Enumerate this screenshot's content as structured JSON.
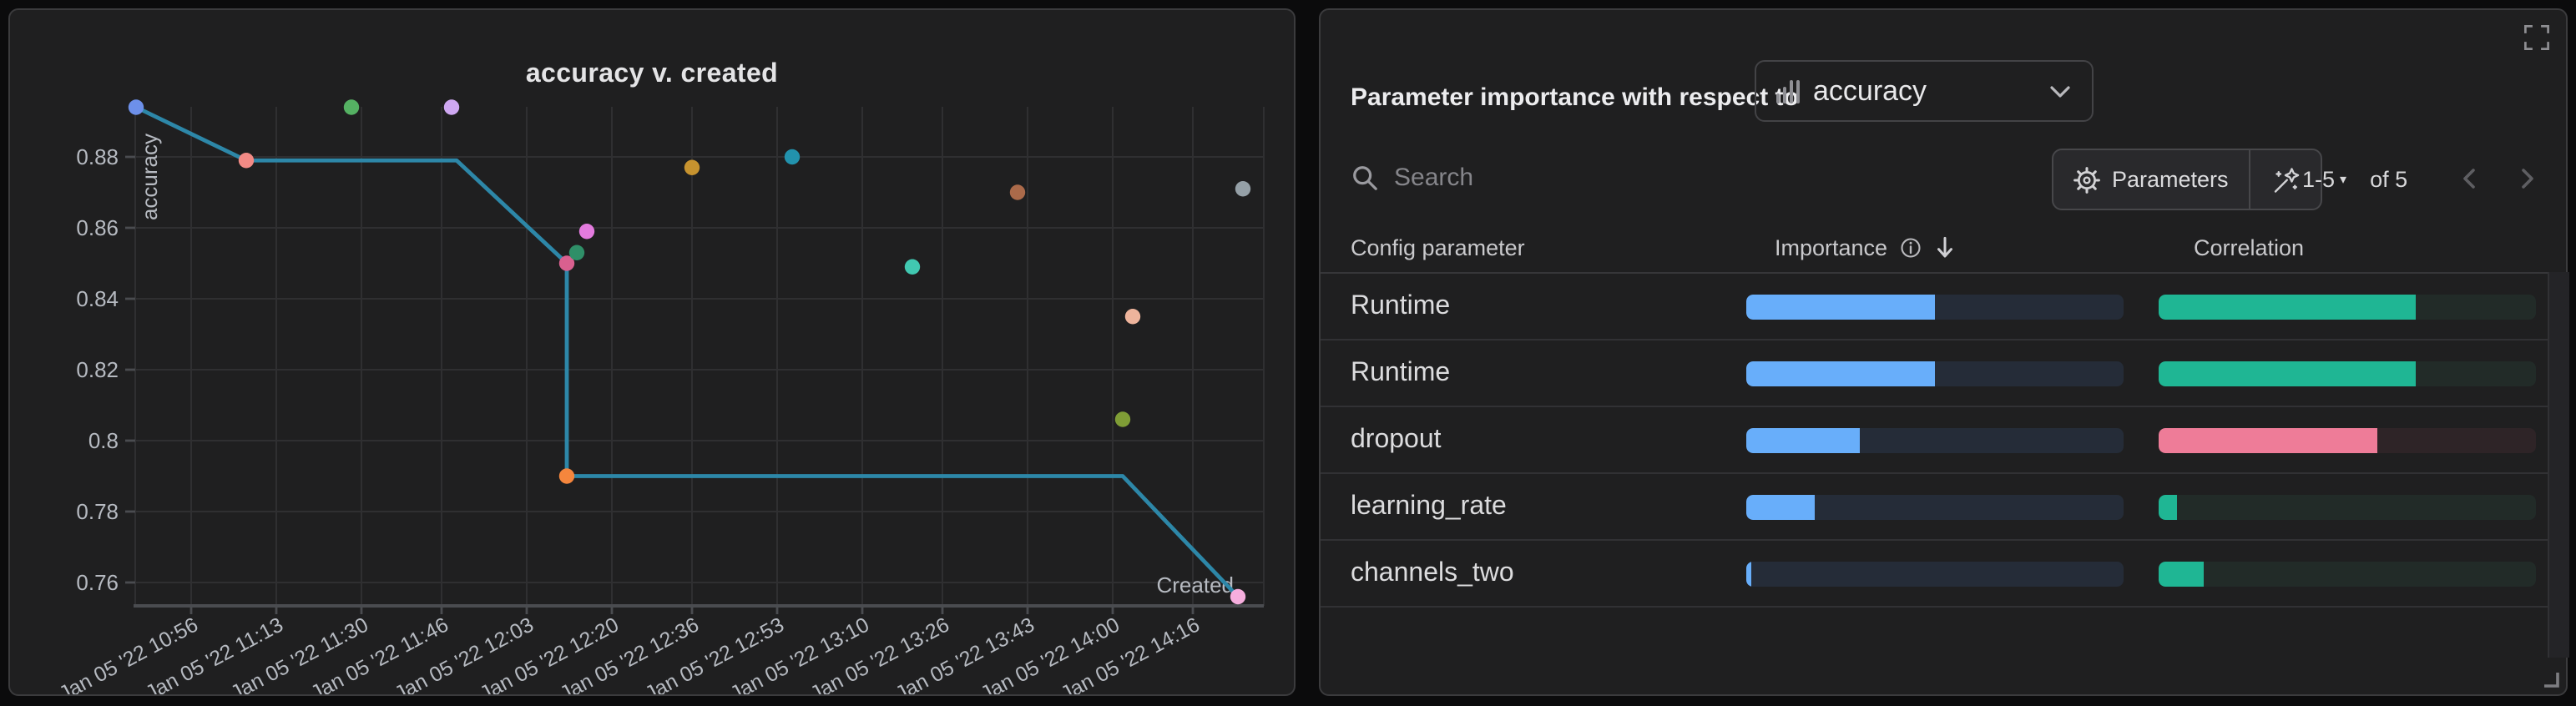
{
  "left_panel": {
    "title": "accuracy v. created",
    "chart_data": {
      "type": "scatter",
      "title": "accuracy v. created",
      "xlabel": "Created",
      "ylabel": "accuracy",
      "grid": true,
      "y_ticks": [
        0.88,
        0.86,
        0.84,
        0.82,
        0.8,
        0.78,
        0.76
      ],
      "y_domain": [
        0.753,
        0.894
      ],
      "x_tick_labels": [
        "Jan 05 '22 10:56",
        "Jan 05 '22 11:13",
        "Jan 05 '22 11:30",
        "Jan 05 '22 11:46",
        "Jan 05 '22 12:03",
        "Jan 05 '22 12:20",
        "Jan 05 '22 12:36",
        "Jan 05 '22 12:53",
        "Jan 05 '22 13:10",
        "Jan 05 '22 13:26",
        "Jan 05 '22 13:43",
        "Jan 05 '22 14:00",
        "Jan 05 '22 14:16"
      ],
      "points": [
        {
          "x": "10:45",
          "y": 0.894,
          "color": "#6d90ea"
        },
        {
          "x": "11:07",
          "y": 0.879,
          "color": "#f28a85"
        },
        {
          "x": "11:28",
          "y": 0.894,
          "color": "#55b163"
        },
        {
          "x": "11:48",
          "y": 0.894,
          "color": "#cfa8f2"
        },
        {
          "x": "12:11",
          "y": 0.85,
          "color": "#d9608f"
        },
        {
          "x": "12:13",
          "y": 0.853,
          "color": "#2f8f68"
        },
        {
          "x": "12:15",
          "y": 0.859,
          "color": "#e37bde"
        },
        {
          "x": "12:11",
          "y": 0.79,
          "color": "#f5863d"
        },
        {
          "x": "12:36",
          "y": 0.877,
          "color": "#c7932f"
        },
        {
          "x": "12:56",
          "y": 0.88,
          "color": "#2292ad"
        },
        {
          "x": "13:20",
          "y": 0.849,
          "color": "#41c8b1"
        },
        {
          "x": "13:41",
          "y": 0.87,
          "color": "#ab6a4a"
        },
        {
          "x": "14:04",
          "y": 0.835,
          "color": "#eeb49c"
        },
        {
          "x": "14:02",
          "y": 0.806,
          "color": "#7f9d36"
        },
        {
          "x": "14:26",
          "y": 0.871,
          "color": "#95a0a7"
        },
        {
          "x": "14:25",
          "y": 0.756,
          "color": "#f6aede"
        }
      ],
      "best_line": {
        "color": "#2d87a8",
        "points": [
          {
            "x": "10:45",
            "y": 0.894
          },
          {
            "x": "11:07",
            "y": 0.879
          },
          {
            "x": "11:49",
            "y": 0.879
          },
          {
            "x": "12:11",
            "y": 0.85
          },
          {
            "x": "12:11",
            "y": 0.79
          },
          {
            "x": "14:02",
            "y": 0.79
          },
          {
            "x": "14:25",
            "y": 0.756
          }
        ]
      }
    }
  },
  "right_panel": {
    "header_label": "Parameter importance with respect to",
    "metric_select": {
      "value": "accuracy",
      "icon": "bar-chart"
    },
    "search": {
      "placeholder": "Search",
      "icon": "magnifier"
    },
    "parameters_button": {
      "label": "Parameters",
      "icon": "gear"
    },
    "wand_button": {
      "icon": "magic-wand"
    },
    "pagination": {
      "range": "1-5",
      "caret": "▾",
      "of": "of 5",
      "prev_icon": "chevron-left",
      "next_icon": "chevron-right"
    },
    "expand_icon": "fullscreen-corners",
    "resize_icon": "corner-handle",
    "table": {
      "columns": [
        "Config parameter",
        "Importance",
        "Correlation"
      ],
      "importance_header_icons": [
        "info-circle",
        "sort-arrow-down"
      ],
      "rows": [
        {
          "param": "Runtime",
          "importance": 0.5,
          "correlation": 0.68,
          "correlation_sign": "positive"
        },
        {
          "param": "Runtime",
          "importance": 0.5,
          "correlation": 0.68,
          "correlation_sign": "positive"
        },
        {
          "param": "dropout",
          "importance": 0.3,
          "correlation": 0.58,
          "correlation_sign": "negative"
        },
        {
          "param": "learning_rate",
          "importance": 0.18,
          "correlation": 0.05,
          "correlation_sign": "positive"
        },
        {
          "param": "channels_two",
          "importance": 0.01,
          "correlation": 0.12,
          "correlation_sign": "positive"
        }
      ]
    }
  },
  "colors": {
    "page_bg": "#0b0b0c",
    "panel_bg": "#1f1f20",
    "panel_border": "#3b3b3d",
    "gridline": "#2f2f31",
    "axis_line": "#4a4c50",
    "tick_label": "#b6bac1",
    "importance_fill": "#68aefa",
    "importance_track": "#252c38",
    "correlation_pos_fill": "#1fb694",
    "correlation_pos_track": "#222b28",
    "correlation_neg_fill": "#ee7c98",
    "correlation_neg_track": "#2e2427",
    "line": "#2d87a8"
  }
}
